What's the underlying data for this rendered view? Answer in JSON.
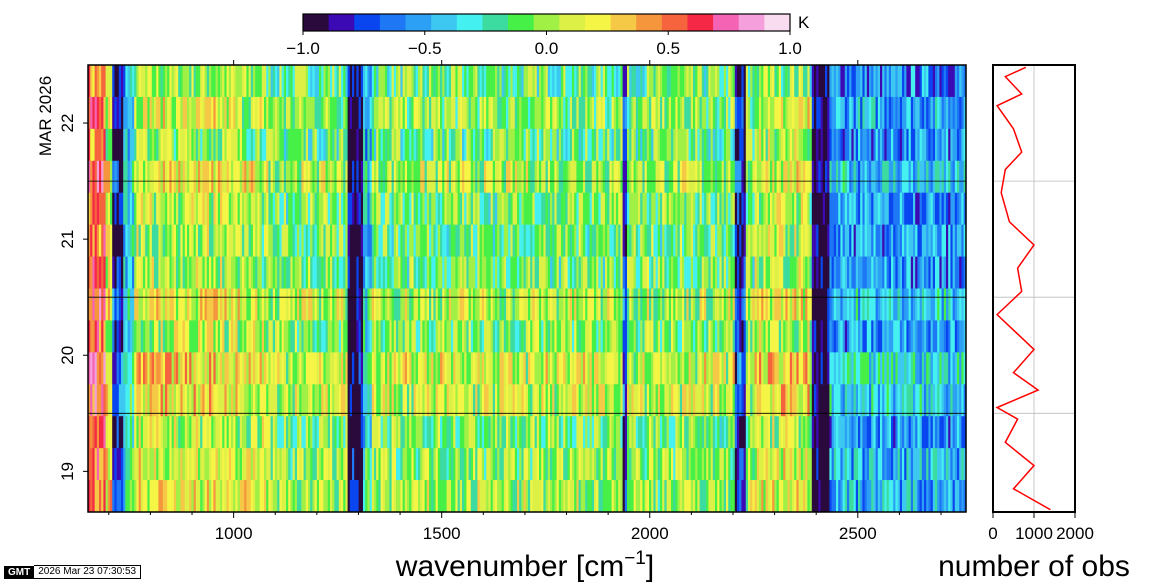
{
  "chart_data": [
    {
      "type": "heatmap",
      "xlabel": "wavenumber [cm",
      "xlabel_sup": "−1",
      "xlabel_close": "]",
      "xlim": [
        650,
        2760
      ],
      "xticks": [
        1000,
        1500,
        2000,
        2500
      ],
      "ylabel_month": "MAR 2026",
      "ylim_days": [
        18.65,
        22.5
      ],
      "yticks": [
        19,
        20,
        21,
        22
      ],
      "day_boundaries": [
        19.5,
        20.5,
        21.5
      ],
      "time_rows": 14,
      "colorbar": {
        "unit": "K",
        "range": [
          -1.0,
          1.0
        ],
        "ticks": [
          "−1.0",
          "−0.5",
          "0.0",
          "0.5",
          "1.0"
        ],
        "tick_values": [
          -1.0,
          -0.5,
          0.0,
          0.5,
          1.0
        ],
        "colors": [
          "#2a0a3c",
          "#3c0ab4",
          "#0a46f0",
          "#1e78f5",
          "#2ca0f5",
          "#3cc8f0",
          "#45f0f0",
          "#3cdca0",
          "#46f046",
          "#a0f046",
          "#dcf046",
          "#f5f546",
          "#f5c846",
          "#f5963c",
          "#f5643c",
          "#f52846",
          "#f564b4",
          "#f5a0dc",
          "#fadcf0"
        ]
      },
      "features": [
        {
          "from": 650,
          "to": 690,
          "value": 0.55
        },
        {
          "from": 690,
          "to": 705,
          "value": 0.2
        },
        {
          "from": 705,
          "to": 730,
          "value": -0.75
        },
        {
          "from": 730,
          "to": 760,
          "value": -0.3
        },
        {
          "from": 760,
          "to": 1000,
          "value": 0.15
        },
        {
          "from": 1000,
          "to": 1080,
          "value": 0.1
        },
        {
          "from": 1270,
          "to": 1310,
          "value": -0.95
        },
        {
          "from": 1310,
          "to": 1330,
          "value": -0.3
        },
        {
          "from": 1930,
          "to": 1945,
          "value": -0.7
        },
        {
          "from": 2200,
          "to": 2230,
          "value": -0.8
        },
        {
          "from": 2250,
          "to": 2380,
          "value": 0.15
        },
        {
          "from": 2385,
          "to": 2430,
          "value": -1.0
        },
        {
          "from": 2430,
          "to": 2760,
          "value": -0.45
        }
      ]
    },
    {
      "type": "line",
      "xlabel": "number of obs",
      "xlim": [
        0,
        2000
      ],
      "xticks": [
        0,
        1000,
        2000
      ],
      "series": [
        {
          "color": "#ff0000",
          "points": [
            [
              1400,
              18.67
            ],
            [
              500,
              18.85
            ],
            [
              1000,
              19.05
            ],
            [
              300,
              19.25
            ],
            [
              600,
              19.45
            ],
            [
              100,
              19.55
            ],
            [
              1100,
              19.7
            ],
            [
              500,
              19.85
            ],
            [
              1000,
              20.05
            ],
            [
              100,
              20.35
            ],
            [
              400,
              20.45
            ],
            [
              700,
              20.55
            ],
            [
              600,
              20.75
            ],
            [
              1000,
              20.95
            ],
            [
              400,
              21.15
            ],
            [
              200,
              21.4
            ],
            [
              300,
              21.6
            ],
            [
              700,
              21.75
            ],
            [
              500,
              21.95
            ],
            [
              100,
              22.15
            ],
            [
              700,
              22.25
            ],
            [
              300,
              22.4
            ],
            [
              800,
              22.48
            ]
          ]
        }
      ]
    }
  ],
  "stamp": {
    "logo": "GMT",
    "timestamp": "2026 Mar 23 07:30:53"
  }
}
